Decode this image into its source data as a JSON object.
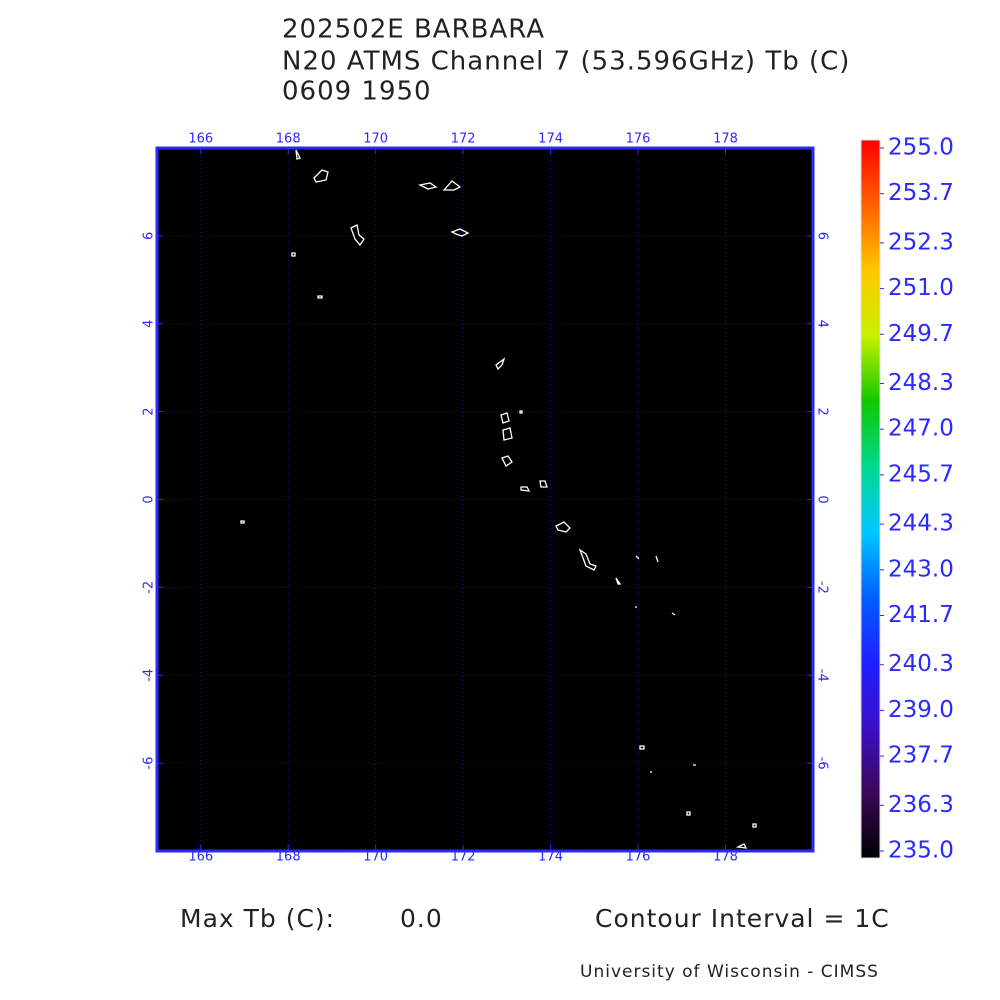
{
  "chart_data": {
    "type": "map",
    "title": "202502E BARBARA",
    "subtitle": "N20 ATMS Channel 7 (53.596GHz) Tb (C)",
    "time": "0609 1950",
    "xlim": [
      165,
      180
    ],
    "xticks": [
      166,
      168,
      170,
      172,
      174,
      176,
      178
    ],
    "ylim": [
      -8,
      8
    ],
    "yticks": [
      -6,
      -4,
      -2,
      0,
      2,
      4,
      6
    ],
    "grid": true,
    "background": "#000000",
    "axis_color": "#2a2aff",
    "grid_color": "#1010c8",
    "coast_color": "#ffffff",
    "colorbar": {
      "lim": [
        235,
        255
      ],
      "colors": [
        "#000000",
        "#3a0858",
        "#3a10c8",
        "#1f1fff",
        "#0060ff",
        "#00c8ff",
        "#00d890",
        "#10c800",
        "#c8f000",
        "#ffc800",
        "#ff6000",
        "#ff0000"
      ],
      "ticks": [
        {
          "value": 255,
          "label": "255.0"
        },
        {
          "value": 253.7,
          "label": "253.7"
        },
        {
          "value": 252.3,
          "label": "252.3"
        },
        {
          "value": 251,
          "label": "251.0"
        },
        {
          "value": 249.7,
          "label": "249.7"
        },
        {
          "value": 248.3,
          "label": "248.3"
        },
        {
          "value": 247,
          "label": "247.0"
        },
        {
          "value": 245.7,
          "label": "245.7"
        },
        {
          "value": 244.3,
          "label": "244.3"
        },
        {
          "value": 243,
          "label": "243.0"
        },
        {
          "value": 241.7,
          "label": "241.7"
        },
        {
          "value": 240.3,
          "label": "240.3"
        },
        {
          "value": 239,
          "label": "239.0"
        },
        {
          "value": 237.7,
          "label": "237.7"
        },
        {
          "value": 236.3,
          "label": "236.3"
        },
        {
          "value": 235,
          "label": "235.0"
        }
      ]
    },
    "footer": {
      "max_label": "Max Tb (C):",
      "max_value": "0.0",
      "contour": "Contour Interval = 1C",
      "credit": "University of Wisconsin - CIMSS"
    }
  }
}
